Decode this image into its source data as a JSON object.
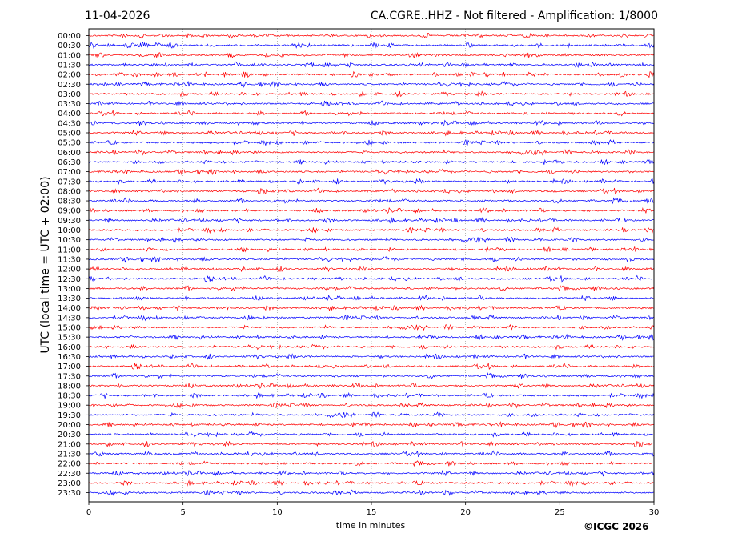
{
  "header": {
    "date": "11-04-2026",
    "title": "CA.CGRE..HHZ - Not filtered - Amplification: 1/8000"
  },
  "footer": {
    "copyright": "©ICGC 2026"
  },
  "chart_data": {
    "type": "line",
    "title": "CA.CGRE..HHZ - Not filtered - Amplification: 1/8000",
    "xlabel": "time in minutes",
    "ylabel": "UTC (local time = UTC + 02:00)",
    "xlim": [
      0,
      30
    ],
    "xticks": [
      0,
      5,
      10,
      15,
      20,
      25,
      30
    ],
    "grid": "vertical dotted lines at each x tick",
    "trace_colors": [
      "#ff0000",
      "#0000ff"
    ],
    "rows": [
      "00:00",
      "00:30",
      "01:00",
      "01:30",
      "02:00",
      "02:30",
      "03:00",
      "03:30",
      "04:00",
      "04:30",
      "05:00",
      "05:30",
      "06:00",
      "06:30",
      "07:00",
      "07:30",
      "08:00",
      "08:30",
      "09:00",
      "09:30",
      "10:00",
      "10:30",
      "11:00",
      "11:30",
      "12:00",
      "12:30",
      "13:00",
      "13:30",
      "14:00",
      "14:30",
      "15:00",
      "15:30",
      "16:00",
      "16:30",
      "17:00",
      "17:30",
      "18:00",
      "18:30",
      "19:00",
      "19:30",
      "20:00",
      "20:30",
      "21:00",
      "21:30",
      "22:00",
      "22:30",
      "23:00",
      "23:30"
    ]
  }
}
